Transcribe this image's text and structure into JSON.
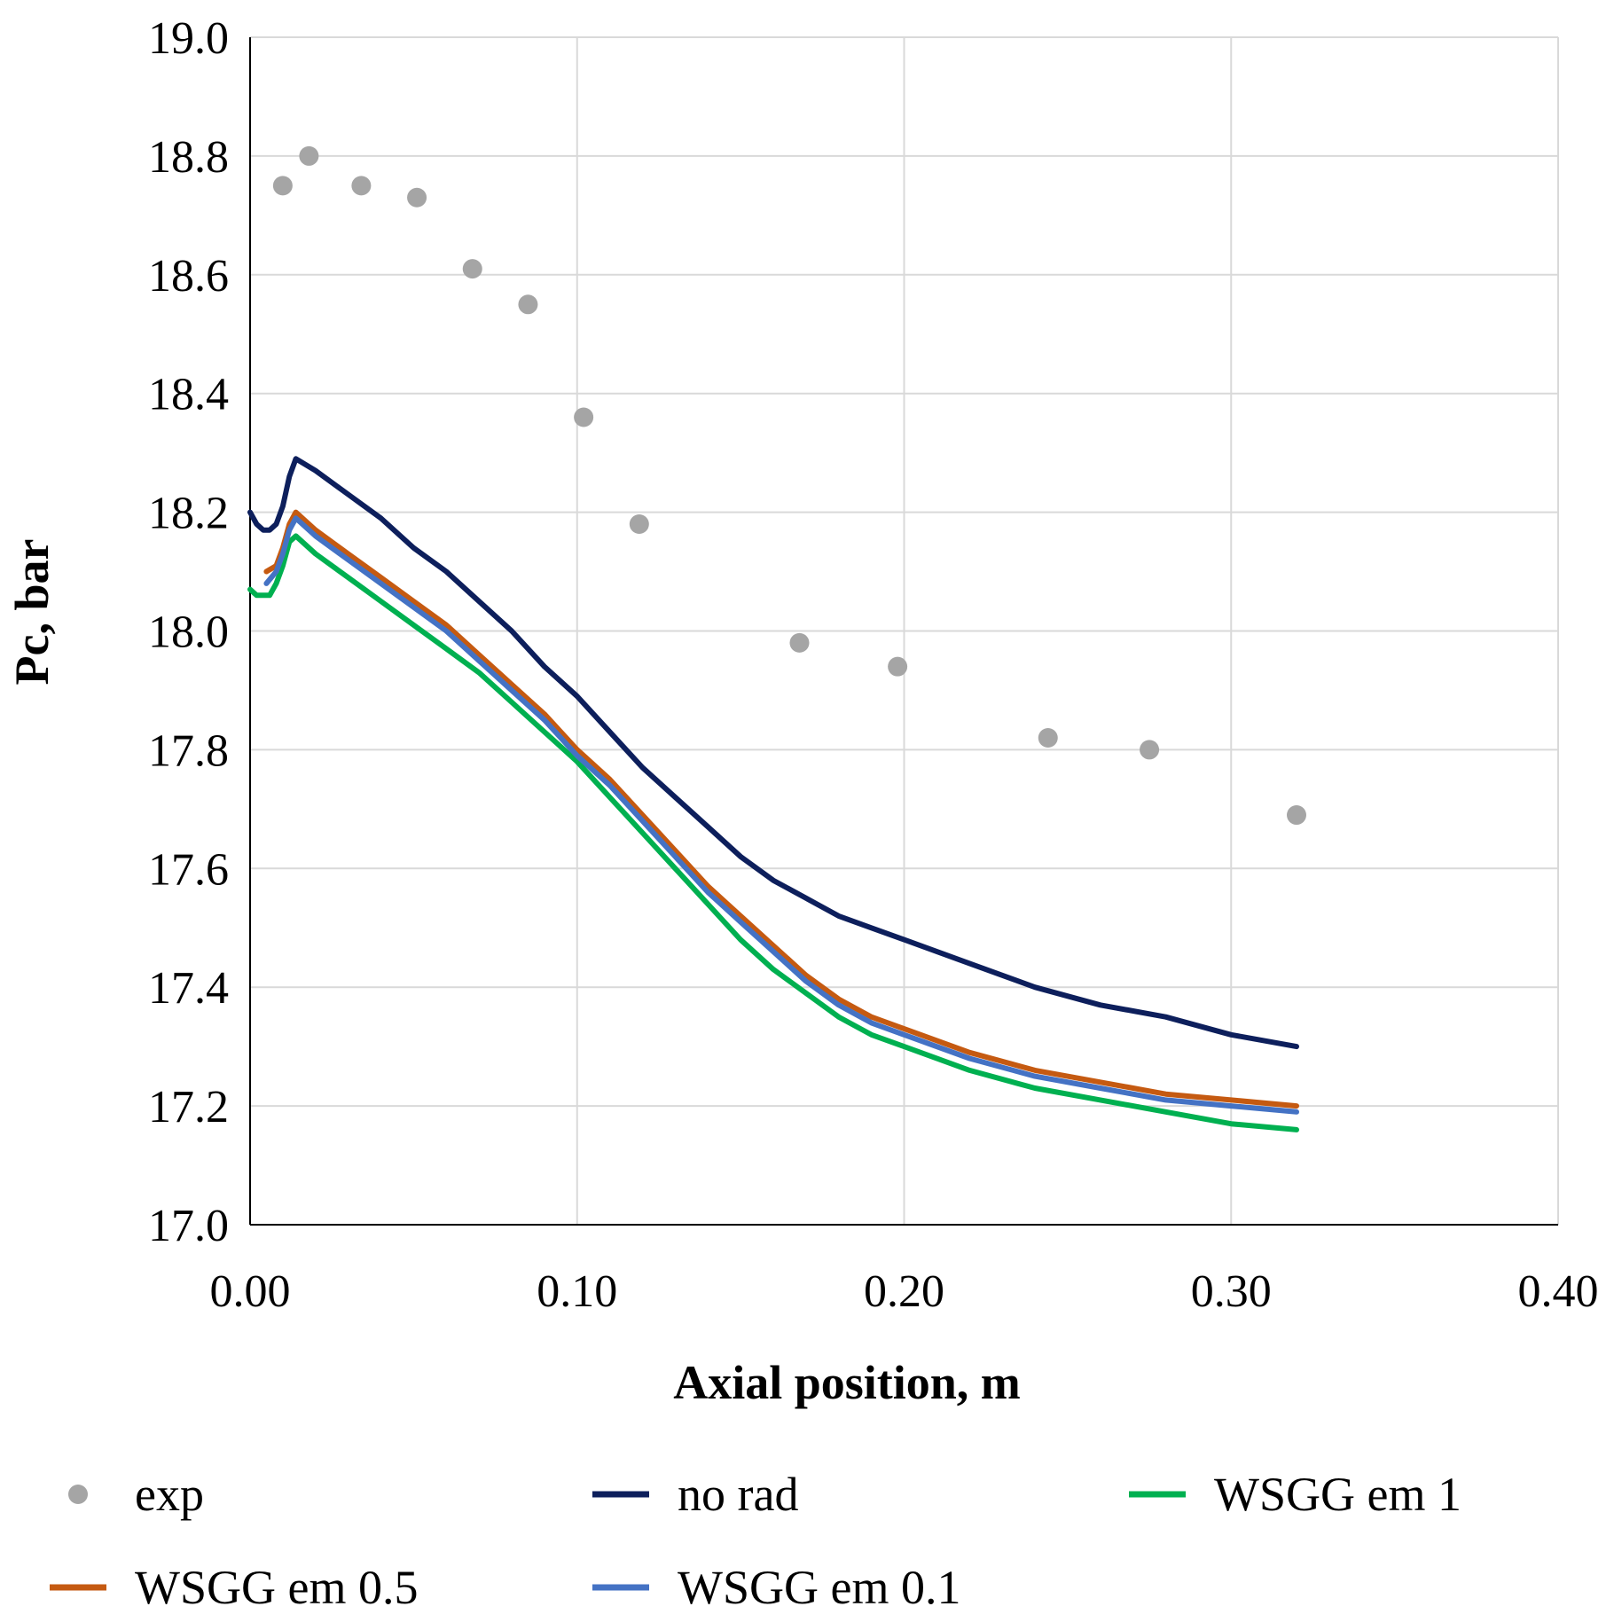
{
  "chart_data": {
    "type": "line",
    "title": "",
    "xlabel": "Axial position, m",
    "ylabel": "Pc, bar",
    "xlim": [
      0.0,
      0.4
    ],
    "ylim": [
      17.0,
      19.0
    ],
    "xticks": [
      "0.00",
      "0.10",
      "0.20",
      "0.30",
      "0.40"
    ],
    "yticks": [
      "17.0",
      "17.2",
      "17.4",
      "17.6",
      "17.8",
      "18.0",
      "18.2",
      "18.4",
      "18.6",
      "18.8",
      "19.0"
    ],
    "grid": true,
    "legend_position": "bottom",
    "series": [
      {
        "name": "exp",
        "kind": "scatter",
        "color": "#a5a5a5",
        "x": [
          0.01,
          0.018,
          0.034,
          0.051,
          0.068,
          0.085,
          0.102,
          0.119,
          0.168,
          0.198,
          0.244,
          0.275,
          0.32
        ],
        "y": [
          18.75,
          18.8,
          18.75,
          18.73,
          18.61,
          18.55,
          18.36,
          18.18,
          17.98,
          17.94,
          17.82,
          17.8,
          17.69
        ]
      },
      {
        "name": "no rad",
        "kind": "line",
        "color": "#0d1f5c",
        "x": [
          0.0,
          0.002,
          0.004,
          0.006,
          0.008,
          0.01,
          0.012,
          0.014,
          0.02,
          0.03,
          0.04,
          0.05,
          0.06,
          0.07,
          0.08,
          0.09,
          0.1,
          0.11,
          0.12,
          0.13,
          0.14,
          0.15,
          0.16,
          0.17,
          0.18,
          0.19,
          0.2,
          0.22,
          0.24,
          0.26,
          0.28,
          0.3,
          0.32
        ],
        "y": [
          18.2,
          18.18,
          18.17,
          18.17,
          18.18,
          18.21,
          18.26,
          18.29,
          18.27,
          18.23,
          18.19,
          18.14,
          18.1,
          18.05,
          18.0,
          17.94,
          17.89,
          17.83,
          17.77,
          17.72,
          17.67,
          17.62,
          17.58,
          17.55,
          17.52,
          17.5,
          17.48,
          17.44,
          17.4,
          17.37,
          17.35,
          17.32,
          17.3
        ]
      },
      {
        "name": "WSGG em 1",
        "kind": "line",
        "color": "#00b050",
        "x": [
          0.0,
          0.002,
          0.004,
          0.006,
          0.008,
          0.01,
          0.012,
          0.014,
          0.02,
          0.03,
          0.04,
          0.05,
          0.06,
          0.07,
          0.08,
          0.09,
          0.1,
          0.11,
          0.12,
          0.13,
          0.14,
          0.15,
          0.16,
          0.17,
          0.18,
          0.19,
          0.2,
          0.22,
          0.24,
          0.26,
          0.28,
          0.3,
          0.32
        ],
        "y": [
          18.07,
          18.06,
          18.06,
          18.06,
          18.08,
          18.11,
          18.15,
          18.16,
          18.13,
          18.09,
          18.05,
          18.01,
          17.97,
          17.93,
          17.88,
          17.83,
          17.78,
          17.72,
          17.66,
          17.6,
          17.54,
          17.48,
          17.43,
          17.39,
          17.35,
          17.32,
          17.3,
          17.26,
          17.23,
          17.21,
          17.19,
          17.17,
          17.16
        ]
      },
      {
        "name": "WSGG em 0.5",
        "kind": "line",
        "color": "#c55a11",
        "x": [
          0.005,
          0.008,
          0.01,
          0.012,
          0.014,
          0.02,
          0.03,
          0.04,
          0.05,
          0.06,
          0.07,
          0.08,
          0.09,
          0.1,
          0.11,
          0.12,
          0.13,
          0.14,
          0.15,
          0.16,
          0.17,
          0.18,
          0.19,
          0.2,
          0.22,
          0.24,
          0.26,
          0.28,
          0.3,
          0.32
        ],
        "y": [
          18.1,
          18.11,
          18.14,
          18.18,
          18.2,
          18.17,
          18.13,
          18.09,
          18.05,
          18.01,
          17.96,
          17.91,
          17.86,
          17.8,
          17.75,
          17.69,
          17.63,
          17.57,
          17.52,
          17.47,
          17.42,
          17.38,
          17.35,
          17.33,
          17.29,
          17.26,
          17.24,
          17.22,
          17.21,
          17.2
        ]
      },
      {
        "name": "WSGG em 0.1",
        "kind": "line",
        "color": "#4472c4",
        "x": [
          0.005,
          0.008,
          0.01,
          0.012,
          0.014,
          0.02,
          0.03,
          0.04,
          0.05,
          0.06,
          0.07,
          0.08,
          0.09,
          0.1,
          0.11,
          0.12,
          0.13,
          0.14,
          0.15,
          0.16,
          0.17,
          0.18,
          0.19,
          0.2,
          0.22,
          0.24,
          0.26,
          0.28,
          0.3,
          0.32
        ],
        "y": [
          18.08,
          18.1,
          18.13,
          18.17,
          18.19,
          18.16,
          18.12,
          18.08,
          18.04,
          18.0,
          17.95,
          17.9,
          17.85,
          17.79,
          17.74,
          17.68,
          17.62,
          17.56,
          17.51,
          17.46,
          17.41,
          17.37,
          17.34,
          17.32,
          17.28,
          17.25,
          17.23,
          17.21,
          17.2,
          17.19
        ]
      }
    ]
  }
}
